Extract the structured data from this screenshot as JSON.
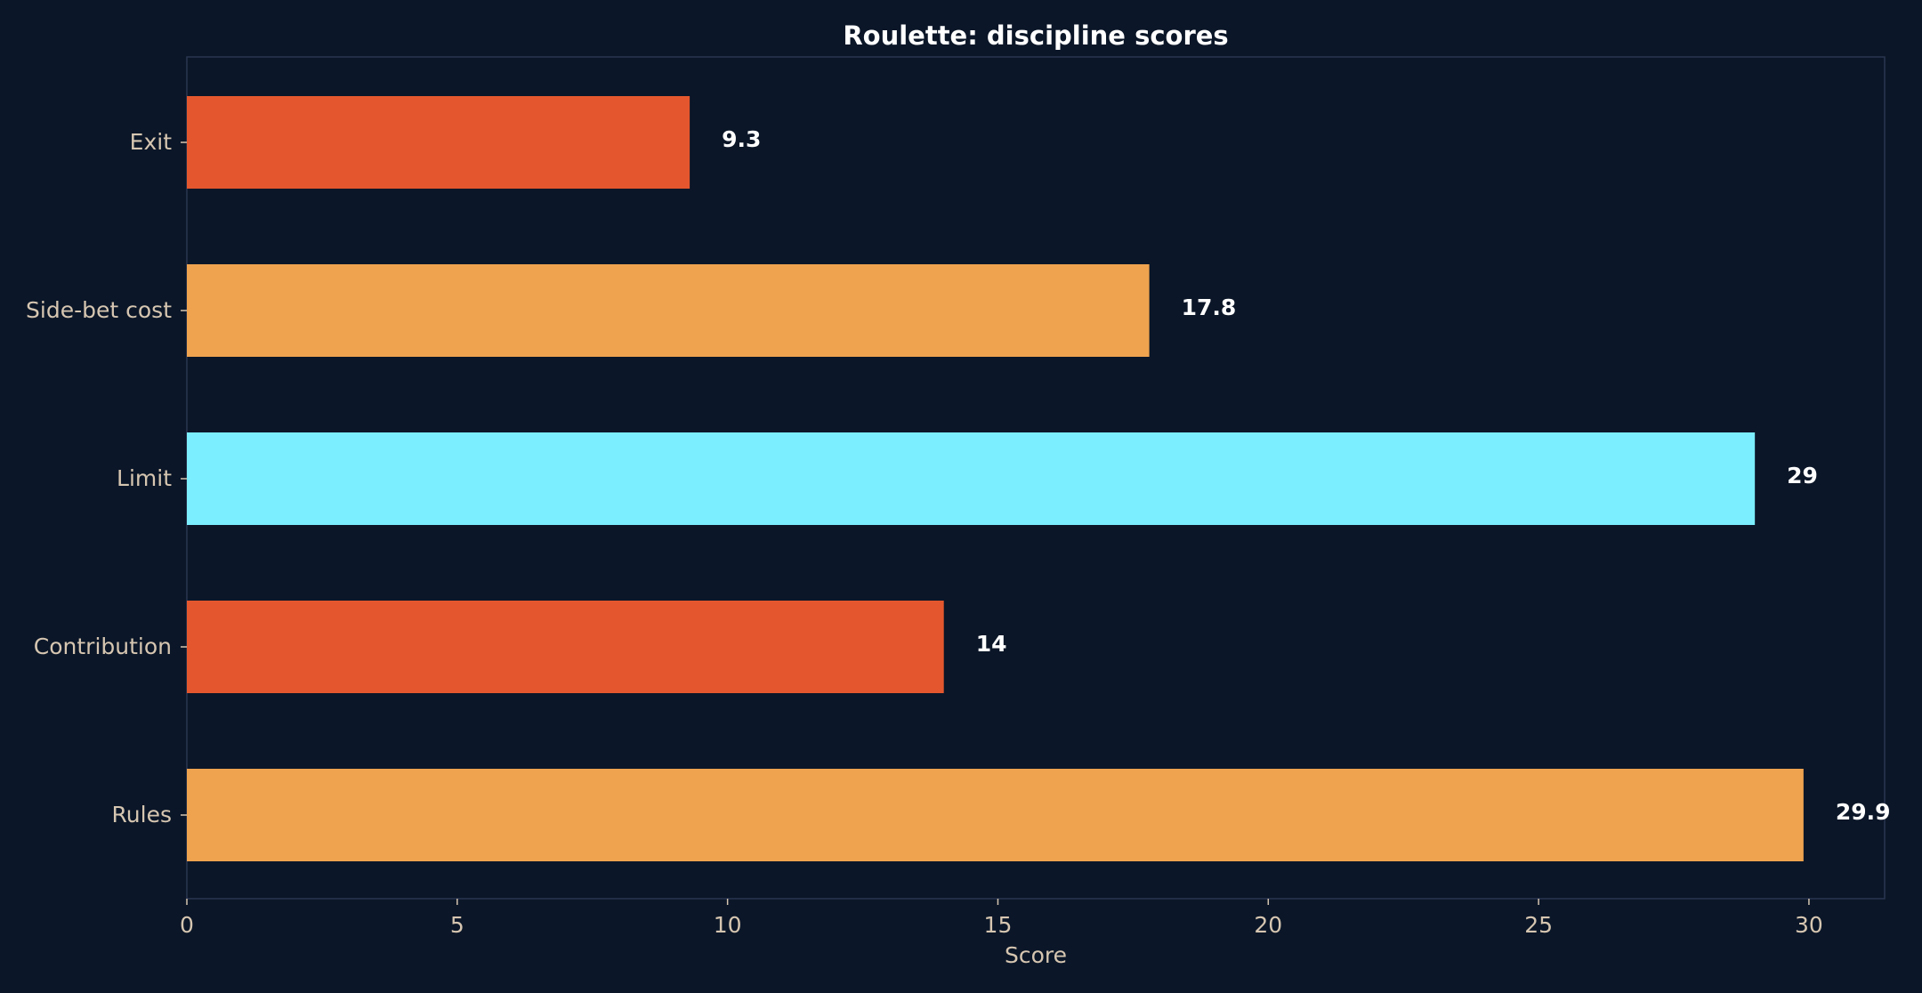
{
  "chart_data": {
    "type": "bar",
    "orientation": "horizontal",
    "title": "Roulette: discipline scores",
    "xlabel": "Score",
    "ylabel": "",
    "categories": [
      "Exit",
      "Side-bet cost",
      "Limit",
      "Contribution",
      "Rules"
    ],
    "values": [
      9.3,
      17.8,
      29,
      14,
      29.9
    ],
    "value_labels": [
      "9.3",
      "17.8",
      "29",
      "14",
      "29.9"
    ],
    "bar_colors": [
      "#e4572e",
      "#efa34f",
      "#7beeff",
      "#e4572e",
      "#efa34f"
    ],
    "xlim": [
      0,
      31.4
    ],
    "xticks": [
      0,
      5,
      10,
      15,
      20,
      25,
      30
    ],
    "grid": false,
    "legend": "none"
  },
  "colors": {
    "background": "#0b1628",
    "frame": "#2a3550",
    "tick_text": "#d6c6b1",
    "label_text": "#ffffff"
  }
}
